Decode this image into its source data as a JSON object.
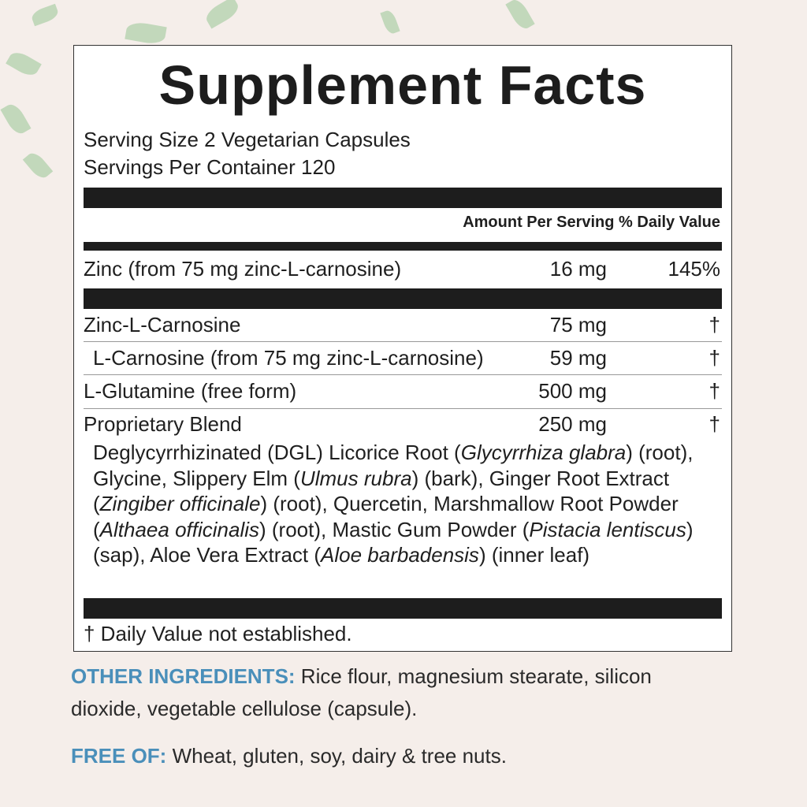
{
  "title": "Supplement Facts",
  "serving_size": "Serving Size 2 Vegetarian Capsules",
  "servings_per_container": "Servings Per Container 120",
  "header": {
    "amount": "Amount Per Serving",
    "dv": "% Daily Value"
  },
  "rows": [
    {
      "name": "Zinc (from 75 mg zinc-L-carnosine)",
      "amount": "16 mg",
      "dv": "145%"
    },
    {
      "name": "Zinc-L-Carnosine",
      "amount": "75 mg",
      "dv": "†"
    },
    {
      "name": "L-Carnosine (from 75 mg zinc-L-carnosine)",
      "amount": "59 mg",
      "dv": "†"
    },
    {
      "name": "L-Glutamine (free form)",
      "amount": "500 mg",
      "dv": "†"
    },
    {
      "name": "Proprietary Blend",
      "amount": "250 mg",
      "dv": "†"
    }
  ],
  "blend": {
    "segments": [
      {
        "text": "Deglycyrrhizinated (DGL) Licorice Root (",
        "italic": false
      },
      {
        "text": "Glycyrrhiza glabra",
        "italic": true
      },
      {
        "text": ") (root), Glycine, Slippery Elm (",
        "italic": false
      },
      {
        "text": "Ulmus rubra",
        "italic": true
      },
      {
        "text": ") (bark), Ginger Root Extract (",
        "italic": false
      },
      {
        "text": "Zingiber officinale",
        "italic": true
      },
      {
        "text": ") (root), Quercetin, Marshmallow Root Powder (",
        "italic": false
      },
      {
        "text": "Althaea officinalis",
        "italic": true
      },
      {
        "text": ") (root), Mastic Gum Powder (",
        "italic": false
      },
      {
        "text": "Pistacia lentiscus",
        "italic": true
      },
      {
        "text": ") (sap), Aloe Vera Extract (",
        "italic": false
      },
      {
        "text": "Aloe barbadensis",
        "italic": true
      },
      {
        "text": ") (inner leaf)",
        "italic": false
      }
    ]
  },
  "footnote": "† Daily Value not established.",
  "other_ingredients": {
    "label": "OTHER INGREDIENTS:",
    "text": " Rice flour, magnesium stearate, silicon dioxide, vegetable cellulose (capsule)."
  },
  "free_of": {
    "label": "FREE OF:",
    "text": " Wheat, gluten, soy, dairy & tree nuts."
  },
  "colors": {
    "accent": "#4a8fba",
    "background": "#f5eeea"
  }
}
